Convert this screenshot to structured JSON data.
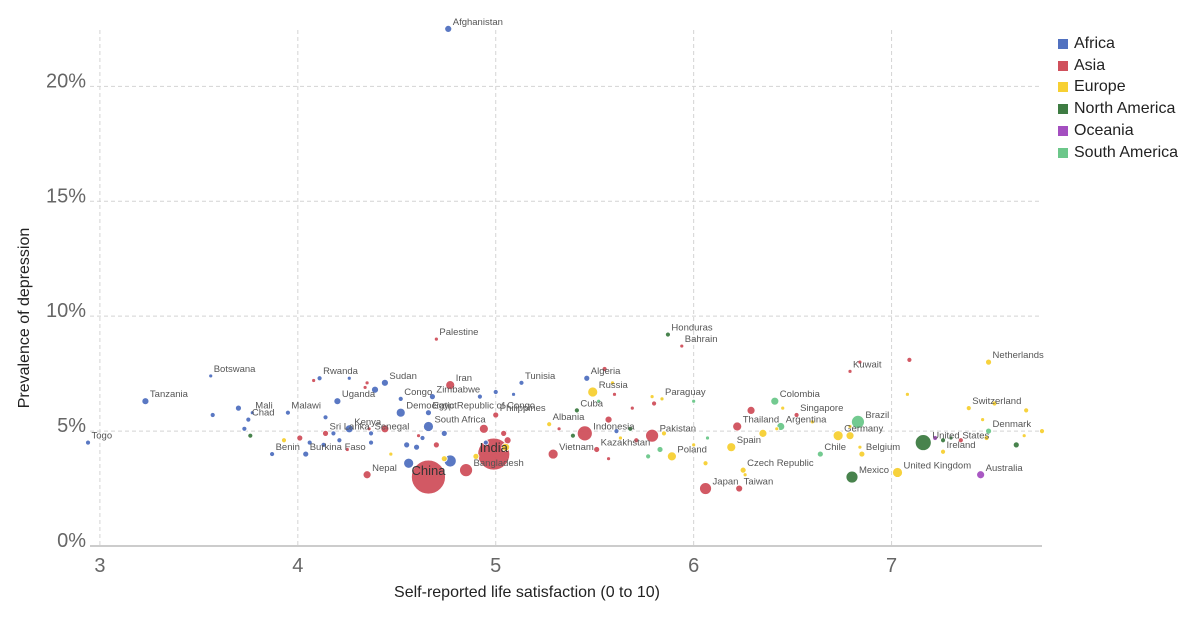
{
  "chart_data": {
    "type": "scatter",
    "title": "",
    "xlabel": "Self-reported life satisfaction (0 to 10)",
    "ylabel": "Prevalence of depression",
    "xlim": [
      2.95,
      7.76
    ],
    "ylim": [
      0,
      22.8
    ],
    "xticks": [
      {
        "value": 3,
        "label": "3"
      },
      {
        "value": 4,
        "label": "4"
      },
      {
        "value": 5,
        "label": "5"
      },
      {
        "value": 6,
        "label": "6"
      },
      {
        "value": 7,
        "label": "7"
      }
    ],
    "yticks": [
      {
        "value": 0,
        "label": "0%"
      },
      {
        "value": 5,
        "label": "5%"
      },
      {
        "value": 10,
        "label": "10%"
      },
      {
        "value": 15,
        "label": "15%"
      },
      {
        "value": 20,
        "label": "20%"
      }
    ],
    "grid": true,
    "legend_position": "right",
    "series": [
      {
        "name": "Africa",
        "color": "#5171c0"
      },
      {
        "name": "Asia",
        "color": "#d0505c"
      },
      {
        "name": "Europe",
        "color": "#f7d033"
      },
      {
        "name": "North America",
        "color": "#3e7c43"
      },
      {
        "name": "Oceania",
        "color": "#a44fc0"
      },
      {
        "name": "South America",
        "color": "#6cc78a"
      }
    ],
    "points": [
      {
        "label": "Afghanistan",
        "x": 4.76,
        "y": 22.5,
        "s": 0,
        "r": 3.5
      },
      {
        "label": "Palestine",
        "x": 4.7,
        "y": 9.0,
        "s": 1,
        "r": 2
      },
      {
        "label": "Honduras",
        "x": 5.87,
        "y": 9.2,
        "s": 3,
        "r": 2.5
      },
      {
        "label": "Bahrain",
        "x": 5.94,
        "y": 8.7,
        "s": 1,
        "r": 2
      },
      {
        "label": "Netherlands",
        "x": 7.49,
        "y": 8.0,
        "s": 2,
        "r": 3
      },
      {
        "label": "Kuwait",
        "x": 6.79,
        "y": 7.6,
        "s": 1,
        "r": 2
      },
      {
        "label": "Botswana",
        "x": 3.56,
        "y": 7.4,
        "s": 0,
        "r": 2
      },
      {
        "label": "Rwanda",
        "x": 4.11,
        "y": 7.3,
        "s": 0,
        "r": 2.5
      },
      {
        "label": "Sudan",
        "x": 4.44,
        "y": 7.1,
        "s": 0,
        "r": 3.5
      },
      {
        "label": "Iran",
        "x": 4.77,
        "y": 7.0,
        "s": 1,
        "r": 4.5
      },
      {
        "label": "Tunisia",
        "x": 5.13,
        "y": 7.1,
        "s": 0,
        "r": 2.5
      },
      {
        "label": "Algeria",
        "x": 5.46,
        "y": 7.3,
        "s": 0,
        "r": 3
      },
      {
        "label": "Russia",
        "x": 5.49,
        "y": 6.7,
        "s": 2,
        "r": 5
      },
      {
        "label": "Paraguay",
        "x": 5.84,
        "y": 6.4,
        "s": 5,
        "r": 2
      },
      {
        "label": "Colombia",
        "x": 6.41,
        "y": 6.3,
        "s": 5,
        "r": 4
      },
      {
        "label": "Switzerland",
        "x": 7.39,
        "y": 6.0,
        "s": 2,
        "r": 2.5
      },
      {
        "label": "Tanzania",
        "x": 3.23,
        "y": 6.3,
        "s": 0,
        "r": 3.5
      },
      {
        "label": "Uganda",
        "x": 4.2,
        "y": 6.3,
        "s": 0,
        "r": 3.5
      },
      {
        "label": "Congo",
        "x": 4.52,
        "y": 6.4,
        "s": 0,
        "r": 2.5
      },
      {
        "label": "Zimbabwe",
        "x": 4.68,
        "y": 6.5,
        "s": 0,
        "r": 3
      },
      {
        "label": "Cuba",
        "x": 5.41,
        "y": 5.9,
        "s": 3,
        "r": 2.5
      },
      {
        "label": "Singapore",
        "x": 6.52,
        "y": 5.7,
        "s": 1,
        "r": 2.5
      },
      {
        "label": "Brazil",
        "x": 6.83,
        "y": 5.4,
        "s": 5,
        "r": 6.5
      },
      {
        "label": "Mali",
        "x": 3.77,
        "y": 5.8,
        "s": 0,
        "r": 2
      },
      {
        "label": "Malawi",
        "x": 3.95,
        "y": 5.8,
        "s": 0,
        "r": 2.5
      },
      {
        "label": "Democratic Republic of Congo",
        "x": 4.52,
        "y": 5.8,
        "s": 0,
        "r": 4.5
      },
      {
        "label": "Egypt",
        "x": 4.66,
        "y": 5.8,
        "s": 0,
        "r": 3
      },
      {
        "label": "Philippines",
        "x": 5.0,
        "y": 5.7,
        "s": 1,
        "r": 3
      },
      {
        "label": "Chad",
        "x": 3.75,
        "y": 5.5,
        "s": 0,
        "r": 2.5
      },
      {
        "label": "Kenya",
        "x": 4.26,
        "y": 5.1,
        "s": 0,
        "r": 4
      },
      {
        "label": "Albania",
        "x": 5.27,
        "y": 5.3,
        "s": 2,
        "r": 2.5
      },
      {
        "label": "Indonesia",
        "x": 5.45,
        "y": 4.9,
        "s": 1,
        "r": 7.5
      },
      {
        "label": "Thailand",
        "x": 6.22,
        "y": 5.2,
        "s": 1,
        "r": 4.5
      },
      {
        "label": "Argentina",
        "x": 6.44,
        "y": 5.2,
        "s": 5,
        "r": 4
      },
      {
        "label": "Germany",
        "x": 6.73,
        "y": 4.8,
        "s": 2,
        "r": 5
      },
      {
        "label": "Denmark",
        "x": 7.49,
        "y": 5.0,
        "s": 5,
        "r": 3
      },
      {
        "label": "Togo",
        "x": 2.94,
        "y": 4.5,
        "s": 0,
        "r": 2.5
      },
      {
        "label": "Sri Lanka",
        "x": 4.14,
        "y": 4.9,
        "s": 1,
        "r": 3
      },
      {
        "label": "Senegal",
        "x": 4.37,
        "y": 4.9,
        "s": 0,
        "r": 2.5
      },
      {
        "label": "South Africa",
        "x": 4.66,
        "y": 5.2,
        "s": 0,
        "r": 5
      },
      {
        "label": "Pakistan",
        "x": 5.79,
        "y": 4.8,
        "s": 1,
        "r": 6.5
      },
      {
        "label": "Vietnam",
        "x": 5.29,
        "y": 4.0,
        "s": 1,
        "r": 5
      },
      {
        "label": "Kazakhstan",
        "x": 5.51,
        "y": 4.2,
        "s": 1,
        "r": 3
      },
      {
        "label": "Spain",
        "x": 6.19,
        "y": 4.3,
        "s": 2,
        "r": 4.5
      },
      {
        "label": "United States",
        "x": 7.16,
        "y": 4.5,
        "s": 3,
        "r": 8
      },
      {
        "label": "Ireland",
        "x": 7.26,
        "y": 4.1,
        "s": 2,
        "r": 2.5
      },
      {
        "label": "Benin",
        "x": 3.87,
        "y": 4.0,
        "s": 0,
        "r": 2.5
      },
      {
        "label": "Burkina Faso",
        "x": 4.04,
        "y": 4.0,
        "s": 0,
        "r": 3
      },
      {
        "label": "India",
        "x": 4.99,
        "y": 4.0,
        "s": 1,
        "r": 16
      },
      {
        "label": "Poland",
        "x": 5.89,
        "y": 3.9,
        "s": 2,
        "r": 4.5
      },
      {
        "label": "Chile",
        "x": 6.64,
        "y": 4.0,
        "s": 5,
        "r": 3
      },
      {
        "label": "Belgium",
        "x": 6.85,
        "y": 4.0,
        "s": 2,
        "r": 3
      },
      {
        "label": "China",
        "x": 4.66,
        "y": 3.0,
        "s": 1,
        "r": 17
      },
      {
        "label": "Bangladesh",
        "x": 4.85,
        "y": 3.3,
        "s": 1,
        "r": 6.5
      },
      {
        "label": "Nepal",
        "x": 4.35,
        "y": 3.1,
        "s": 1,
        "r": 4
      },
      {
        "label": "Czech Republic",
        "x": 6.25,
        "y": 3.3,
        "s": 2,
        "r": 3
      },
      {
        "label": "Mexico",
        "x": 6.8,
        "y": 3.0,
        "s": 3,
        "r": 6
      },
      {
        "label": "United Kingdom",
        "x": 7.03,
        "y": 3.2,
        "s": 2,
        "r": 5
      },
      {
        "label": "Australia",
        "x": 7.45,
        "y": 3.1,
        "s": 4,
        "r": 4
      },
      {
        "label": "Japan",
        "x": 6.06,
        "y": 2.5,
        "s": 1,
        "r": 6
      },
      {
        "label": "Taiwan",
        "x": 6.23,
        "y": 2.5,
        "s": 1,
        "r": 3.5
      },
      {
        "label": "",
        "x": 4.08,
        "y": 7.2,
        "s": 1,
        "r": 2
      },
      {
        "label": "",
        "x": 4.26,
        "y": 7.3,
        "s": 0,
        "r": 2
      },
      {
        "label": "",
        "x": 4.35,
        "y": 7.1,
        "s": 1,
        "r": 2
      },
      {
        "label": "",
        "x": 4.34,
        "y": 6.9,
        "s": 1,
        "r": 2
      },
      {
        "label": "",
        "x": 4.39,
        "y": 6.8,
        "s": 0,
        "r": 3.5
      },
      {
        "label": "",
        "x": 4.92,
        "y": 6.5,
        "s": 0,
        "r": 2.5
      },
      {
        "label": "",
        "x": 5.0,
        "y": 6.7,
        "s": 0,
        "r": 2.5
      },
      {
        "label": "",
        "x": 5.09,
        "y": 6.6,
        "s": 0,
        "r": 2
      },
      {
        "label": "",
        "x": 5.55,
        "y": 7.7,
        "s": 1,
        "r": 2.5
      },
      {
        "label": "",
        "x": 5.59,
        "y": 7.1,
        "s": 2,
        "r": 2
      },
      {
        "label": "",
        "x": 5.6,
        "y": 6.6,
        "s": 1,
        "r": 2
      },
      {
        "label": "",
        "x": 5.52,
        "y": 6.3,
        "s": 5,
        "r": 2
      },
      {
        "label": "",
        "x": 5.69,
        "y": 6.0,
        "s": 1,
        "r": 2
      },
      {
        "label": "",
        "x": 5.79,
        "y": 6.5,
        "s": 2,
        "r": 2
      },
      {
        "label": "",
        "x": 5.8,
        "y": 6.2,
        "s": 1,
        "r": 2.5
      },
      {
        "label": "",
        "x": 5.84,
        "y": 6.4,
        "s": 2,
        "r": 2
      },
      {
        "label": "",
        "x": 6.0,
        "y": 6.3,
        "s": 5,
        "r": 2
      },
      {
        "label": "",
        "x": 6.29,
        "y": 5.9,
        "s": 1,
        "r": 4
      },
      {
        "label": "",
        "x": 6.45,
        "y": 6.0,
        "s": 2,
        "r": 2
      },
      {
        "label": "",
        "x": 7.09,
        "y": 8.1,
        "s": 1,
        "r": 2.5
      },
      {
        "label": "",
        "x": 6.84,
        "y": 8.0,
        "s": 1,
        "r": 2
      },
      {
        "label": "",
        "x": 7.08,
        "y": 6.6,
        "s": 2,
        "r": 2
      },
      {
        "label": "",
        "x": 7.52,
        "y": 6.2,
        "s": 2,
        "r": 2.5
      },
      {
        "label": "",
        "x": 7.68,
        "y": 5.9,
        "s": 2,
        "r": 2.5
      },
      {
        "label": "",
        "x": 7.46,
        "y": 5.5,
        "s": 2,
        "r": 2
      },
      {
        "label": "",
        "x": 7.76,
        "y": 5.0,
        "s": 2,
        "r": 2.5
      },
      {
        "label": "",
        "x": 7.67,
        "y": 4.8,
        "s": 2,
        "r": 2
      },
      {
        "label": "",
        "x": 7.48,
        "y": 4.7,
        "s": 2,
        "r": 2.5
      },
      {
        "label": "",
        "x": 7.63,
        "y": 4.4,
        "s": 3,
        "r": 3
      },
      {
        "label": "",
        "x": 7.35,
        "y": 4.6,
        "s": 1,
        "r": 2.5
      },
      {
        "label": "",
        "x": 7.26,
        "y": 4.6,
        "s": 3,
        "r": 2.5
      },
      {
        "label": "",
        "x": 7.3,
        "y": 4.7,
        "s": 3,
        "r": 2
      },
      {
        "label": "",
        "x": 7.22,
        "y": 4.7,
        "s": 4,
        "r": 2.5
      },
      {
        "label": "",
        "x": 6.79,
        "y": 5.2,
        "s": 2,
        "r": 2
      },
      {
        "label": "",
        "x": 6.79,
        "y": 4.8,
        "s": 2,
        "r": 4
      },
      {
        "label": "",
        "x": 6.84,
        "y": 4.3,
        "s": 2,
        "r": 2
      },
      {
        "label": "",
        "x": 6.6,
        "y": 5.4,
        "s": 2,
        "r": 2
      },
      {
        "label": "",
        "x": 6.35,
        "y": 4.9,
        "s": 2,
        "r": 4
      },
      {
        "label": "",
        "x": 6.42,
        "y": 5.1,
        "s": 2,
        "r": 2
      },
      {
        "label": "",
        "x": 6.26,
        "y": 3.1,
        "s": 2,
        "r": 2
      },
      {
        "label": "",
        "x": 6.06,
        "y": 3.6,
        "s": 2,
        "r": 2.5
      },
      {
        "label": "",
        "x": 6.07,
        "y": 4.7,
        "s": 5,
        "r": 2
      },
      {
        "label": "",
        "x": 6.0,
        "y": 4.4,
        "s": 2,
        "r": 2
      },
      {
        "label": "",
        "x": 5.83,
        "y": 4.2,
        "s": 5,
        "r": 3
      },
      {
        "label": "",
        "x": 5.85,
        "y": 4.9,
        "s": 2,
        "r": 2.5
      },
      {
        "label": "",
        "x": 5.77,
        "y": 3.9,
        "s": 5,
        "r": 2.5
      },
      {
        "label": "",
        "x": 5.71,
        "y": 4.6,
        "s": 1,
        "r": 2.5
      },
      {
        "label": "",
        "x": 5.63,
        "y": 4.7,
        "s": 2,
        "r": 2
      },
      {
        "label": "",
        "x": 5.57,
        "y": 5.5,
        "s": 1,
        "r": 3.5
      },
      {
        "label": "",
        "x": 5.57,
        "y": 3.8,
        "s": 1,
        "r": 2
      },
      {
        "label": "",
        "x": 5.61,
        "y": 5.0,
        "s": 0,
        "r": 2.5
      },
      {
        "label": "",
        "x": 5.68,
        "y": 5.1,
        "s": 3,
        "r": 2.5
      },
      {
        "label": "",
        "x": 5.39,
        "y": 4.8,
        "s": 3,
        "r": 2.5
      },
      {
        "label": "",
        "x": 5.32,
        "y": 5.1,
        "s": 1,
        "r": 2
      },
      {
        "label": "",
        "x": 5.04,
        "y": 4.9,
        "s": 1,
        "r": 3
      },
      {
        "label": "",
        "x": 5.05,
        "y": 4.3,
        "s": 2,
        "r": 4
      },
      {
        "label": "",
        "x": 4.9,
        "y": 3.9,
        "s": 2,
        "r": 3
      },
      {
        "label": "",
        "x": 5.06,
        "y": 4.6,
        "s": 1,
        "r": 3.5
      },
      {
        "label": "",
        "x": 4.94,
        "y": 5.1,
        "s": 1,
        "r": 4.5
      },
      {
        "label": "",
        "x": 4.95,
        "y": 4.5,
        "s": 0,
        "r": 2.5
      },
      {
        "label": "",
        "x": 4.74,
        "y": 4.9,
        "s": 0,
        "r": 3
      },
      {
        "label": "",
        "x": 4.74,
        "y": 3.8,
        "s": 2,
        "r": 3
      },
      {
        "label": "",
        "x": 4.77,
        "y": 3.7,
        "s": 0,
        "r": 6
      },
      {
        "label": "",
        "x": 4.7,
        "y": 4.4,
        "s": 1,
        "r": 3
      },
      {
        "label": "",
        "x": 4.63,
        "y": 4.7,
        "s": 0,
        "r": 2.5
      },
      {
        "label": "",
        "x": 4.61,
        "y": 4.8,
        "s": 1,
        "r": 2
      },
      {
        "label": "",
        "x": 4.6,
        "y": 4.3,
        "s": 0,
        "r": 3
      },
      {
        "label": "",
        "x": 4.56,
        "y": 3.6,
        "s": 0,
        "r": 5
      },
      {
        "label": "",
        "x": 4.55,
        "y": 4.4,
        "s": 0,
        "r": 3
      },
      {
        "label": "",
        "x": 4.47,
        "y": 4.0,
        "s": 2,
        "r": 2
      },
      {
        "label": "",
        "x": 4.36,
        "y": 5.1,
        "s": 1,
        "r": 2
      },
      {
        "label": "",
        "x": 4.44,
        "y": 5.1,
        "s": 1,
        "r": 4
      },
      {
        "label": "",
        "x": 4.37,
        "y": 4.5,
        "s": 0,
        "r": 2.5
      },
      {
        "label": "",
        "x": 4.25,
        "y": 4.2,
        "s": 1,
        "r": 2
      },
      {
        "label": "",
        "x": 4.21,
        "y": 4.6,
        "s": 0,
        "r": 2.5
      },
      {
        "label": "",
        "x": 4.13,
        "y": 4.4,
        "s": 0,
        "r": 2.5
      },
      {
        "label": "",
        "x": 4.06,
        "y": 4.5,
        "s": 0,
        "r": 2.5
      },
      {
        "label": "",
        "x": 4.18,
        "y": 4.9,
        "s": 0,
        "r": 2.5
      },
      {
        "label": "",
        "x": 4.14,
        "y": 5.6,
        "s": 0,
        "r": 2.5
      },
      {
        "label": "",
        "x": 4.01,
        "y": 4.7,
        "s": 1,
        "r": 3
      },
      {
        "label": "",
        "x": 3.93,
        "y": 4.6,
        "s": 2,
        "r": 2.5
      },
      {
        "label": "",
        "x": 3.7,
        "y": 6.0,
        "s": 0,
        "r": 3
      },
      {
        "label": "",
        "x": 3.57,
        "y": 5.7,
        "s": 0,
        "r": 2.5
      },
      {
        "label": "",
        "x": 3.76,
        "y": 4.8,
        "s": 3,
        "r": 2.5
      },
      {
        "label": "",
        "x": 3.73,
        "y": 5.1,
        "s": 0,
        "r": 2.5
      }
    ]
  }
}
